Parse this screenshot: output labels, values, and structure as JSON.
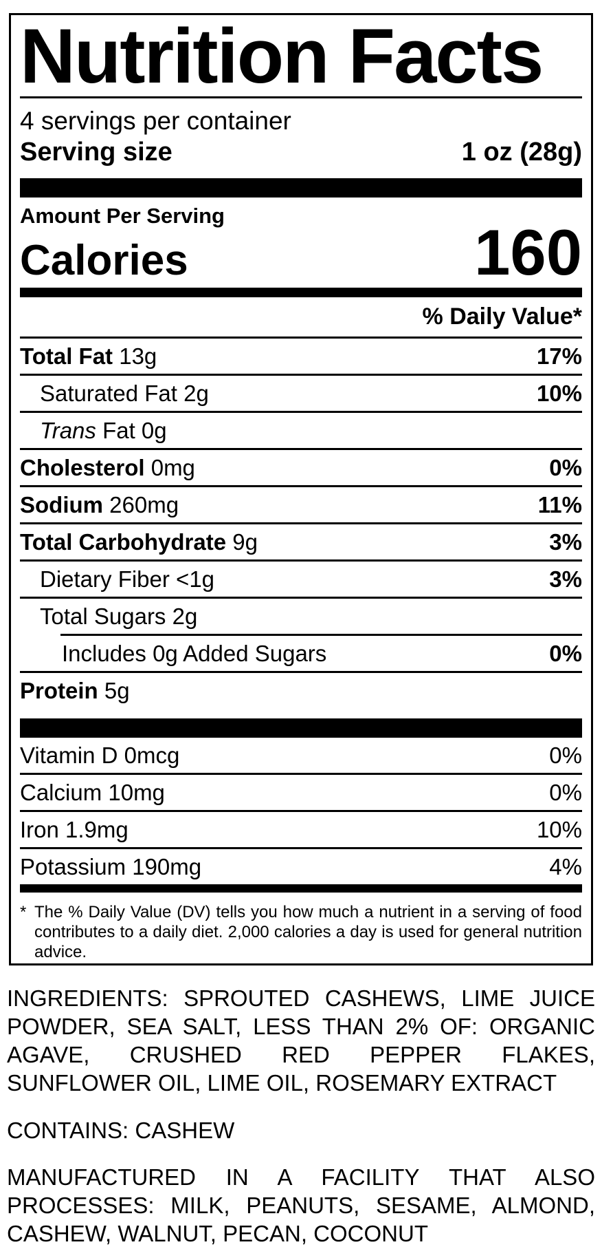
{
  "label": {
    "title": "Nutrition Facts",
    "servings_per_container": "4 servings per container",
    "serving_size_label": "Serving size",
    "serving_size_value": "1 oz (28g)",
    "amount_per_serving": "Amount Per Serving",
    "calories_label": "Calories",
    "calories_value": "160",
    "daily_value_header": "% Daily Value*",
    "rows": [
      {
        "bold": "Total Fat",
        "rest": " 13g",
        "dv": "17%"
      },
      {
        "bold": "",
        "rest": "Saturated Fat 2g",
        "dv": "10%"
      },
      {
        "italic": "Trans",
        "rest": " Fat 0g",
        "dv": ""
      },
      {
        "bold": "Cholesterol",
        "rest": " 0mg",
        "dv": "0%"
      },
      {
        "bold": "Sodium",
        "rest": " 260mg",
        "dv": "11%"
      },
      {
        "bold": "Total Carbohydrate",
        "rest": " 9g",
        "dv": "3%"
      },
      {
        "bold": "",
        "rest": "Dietary Fiber <1g",
        "dv": "3%"
      },
      {
        "bold": "",
        "rest": "Total Sugars 2g",
        "dv": ""
      },
      {
        "bold": "",
        "rest": "Includes 0g Added Sugars",
        "dv": "0%"
      },
      {
        "bold": "Protein",
        "rest": " 5g",
        "dv": ""
      }
    ],
    "micronutrients": [
      {
        "label": "Vitamin D 0mcg",
        "dv": "0%"
      },
      {
        "label": "Calcium 10mg",
        "dv": "0%"
      },
      {
        "label": "Iron 1.9mg",
        "dv": "10%"
      },
      {
        "label": "Potassium 190mg",
        "dv": "4%"
      }
    ],
    "footnote_marker": "*",
    "footnote": "The % Daily Value (DV) tells you how much a nutrient in a serving of food contributes to a daily diet. 2,000 calories a day is used for general nutrition advice."
  },
  "ingredients": "INGREDIENTS: SPROUTED CASHEWS, LIME JUICE POWDER, SEA SALT, LESS THAN 2% OF: ORGANIC AGAVE, CRUSHED RED PEPPER FLAKES, SUNFLOWER OIL, LIME OIL, ROSEMARY EXTRACT",
  "contains": "CONTAINS: CASHEW",
  "facility": "MANUFACTURED IN A FACILITY THAT ALSO PROCESSES: MILK, PEANUTS, SESAME, ALMOND, CASHEW, WALNUT, PECAN, COCONUT",
  "colors": {
    "ink": "#000000",
    "background": "#ffffff"
  }
}
